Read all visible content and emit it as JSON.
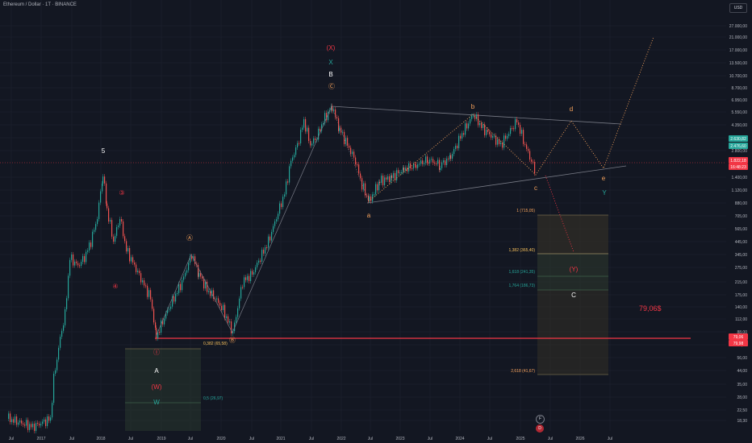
{
  "header": {
    "symbol": "Ethereum / Dollar · 1T · BINANCE",
    "currency": "USD"
  },
  "price_axis": {
    "ticks": [
      "27.000,00",
      "21.000,00",
      "17.000,00",
      "13.500,00",
      "10.700,00",
      "8.700,00",
      "6.950,00",
      "5.550,00",
      "4.350,00",
      "3.550,00",
      "2.800,00",
      "1.400,00",
      "1.120,00",
      "880,00",
      "705,00",
      "565,00",
      "445,00",
      "345,00",
      "275,00",
      "215,00",
      "175,00",
      "140,00",
      "112,00",
      "88,00",
      "70,00",
      "56,00",
      "44,00",
      "35,00",
      "28,00",
      "22,50",
      "18,30"
    ],
    "badges": [
      {
        "text": "2.630,82",
        "color": "#26a69a"
      },
      {
        "text": "2.476,60",
        "color": "#26a69a"
      },
      {
        "text": "1.822,18",
        "color": "#f23645"
      },
      {
        "text": "16:48:23",
        "color": "#f23645"
      },
      {
        "text": "79,06",
        "color": "#f23645"
      },
      {
        "text": "79,98",
        "color": "#f23645"
      }
    ]
  },
  "time_axis": {
    "labels": [
      "Jul",
      "2017",
      "Jul",
      "2018",
      "Jul",
      "2019",
      "Jul",
      "2020",
      "Jul",
      "2021",
      "Jul",
      "2022",
      "Jul",
      "2023",
      "Jul",
      "2024",
      "Jul",
      "2025",
      "Jul",
      "2026",
      "Jul"
    ]
  },
  "wave_labels": [
    {
      "text": "5"
    },
    {
      "text": "③"
    },
    {
      "text": "④"
    },
    {
      "text": "Ⓐ"
    },
    {
      "text": "Ⓑ"
    },
    {
      "text": "Ⓒ"
    },
    {
      "text": "(X)"
    },
    {
      "text": "X"
    },
    {
      "text": "B"
    },
    {
      "text": "a"
    },
    {
      "text": "b"
    },
    {
      "text": "c"
    },
    {
      "text": "d"
    },
    {
      "text": "e"
    },
    {
      "text": "Y"
    },
    {
      "text": "Ⓘ"
    },
    {
      "text": "A"
    },
    {
      "text": "(W)"
    },
    {
      "text": "W"
    },
    {
      "text": "(Y)"
    },
    {
      "text": "C"
    }
  ],
  "fib_levels": [
    {
      "text": "1 (715,05)"
    },
    {
      "text": "1,382 (365,40)"
    },
    {
      "text": "1,618 (241,35)"
    },
    {
      "text": "1,764 (186,73)"
    },
    {
      "text": "2,618 (41,67)"
    },
    {
      "text": "0,382 (65,58)"
    },
    {
      "text": "0,5 (26,97)"
    }
  ],
  "target_label": "79,06$",
  "bottom_icons": [
    {
      "name": "flag-icon",
      "glyph": "F"
    },
    {
      "name": "dividend-icon",
      "glyph": "D"
    }
  ],
  "colors": {
    "background": "#131722",
    "grid": "#1e2230",
    "up": "#26a69a",
    "down": "#ef5350",
    "wave_orange": "#f7a35c",
    "wave_green": "#26a69a",
    "wave_red": "#f23645"
  }
}
